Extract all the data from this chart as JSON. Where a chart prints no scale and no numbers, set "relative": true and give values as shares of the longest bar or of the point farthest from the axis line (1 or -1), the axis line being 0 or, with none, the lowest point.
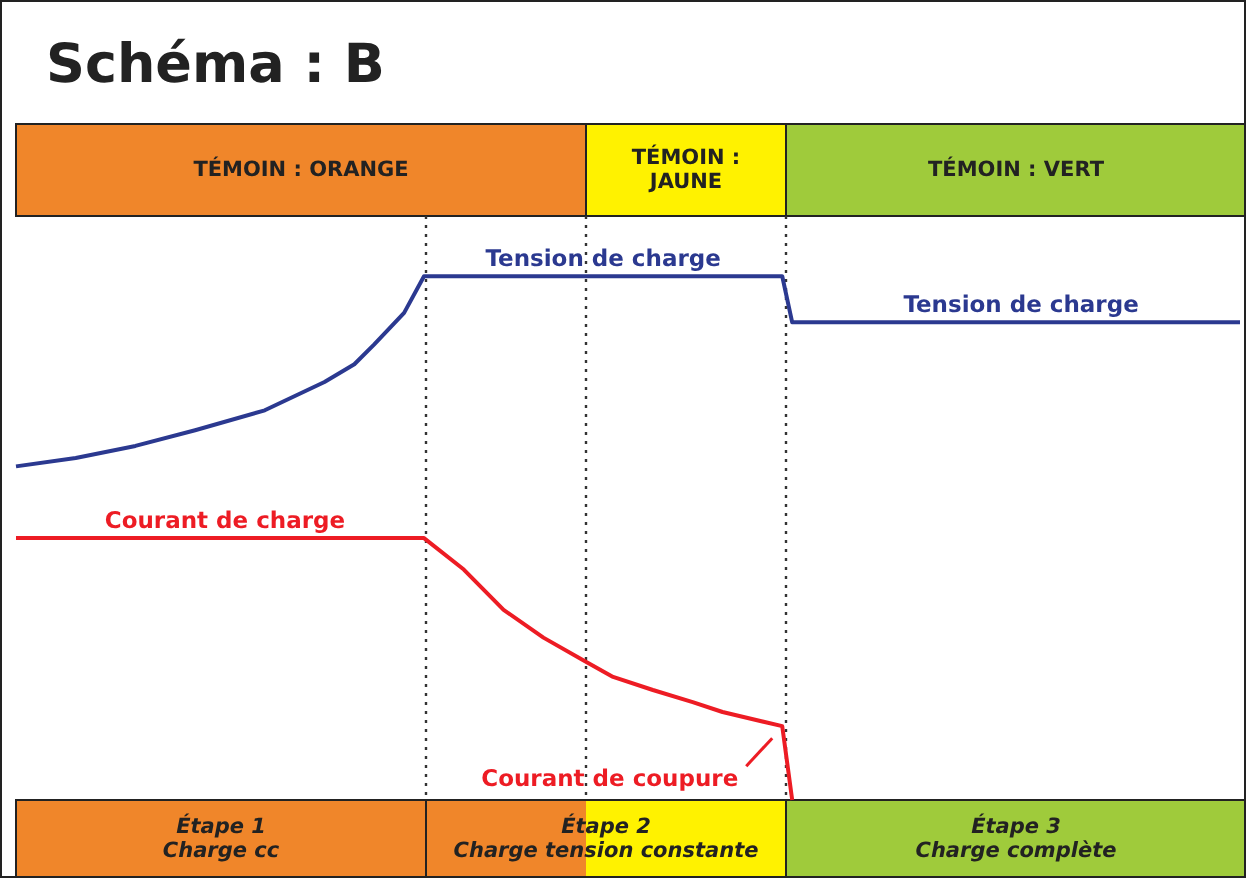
{
  "chart_data": {
    "type": "line",
    "title": "Schéma : B",
    "relative": true,
    "grid": false,
    "legend": false,
    "marker": "none",
    "line_style": "solid",
    "categories": [
      null,
      null,
      null,
      null,
      null,
      null,
      null,
      null,
      null,
      null,
      null,
      null,
      null,
      null,
      null,
      null,
      null,
      null,
      null,
      null,
      null,
      null,
      null,
      null,
      null,
      null,
      null,
      null,
      null,
      null,
      null,
      null,
      null,
      null,
      null,
      null,
      null,
      null,
      null,
      null,
      null,
      null,
      null,
      null,
      null,
      null,
      null,
      null,
      null,
      null,
      null,
      null,
      null,
      null,
      null,
      null,
      null,
      null,
      null,
      null,
      null,
      null,
      null,
      null,
      null,
      null,
      null,
      null,
      null,
      null,
      null,
      null,
      null,
      null,
      null,
      null,
      null,
      null,
      null,
      null,
      null,
      null,
      null,
      null,
      null,
      null,
      null,
      null,
      null,
      null,
      null,
      null,
      null,
      null,
      null,
      null,
      null,
      null,
      null,
      null,
      null,
      null,
      null,
      null,
      null,
      null,
      null,
      null,
      null,
      null,
      null,
      null,
      null,
      null,
      null,
      null,
      null,
      null,
      null,
      null,
      null,
      null,
      null,
      null
    ],
    "series": [
      {
        "name": "Tension de charge",
        "color": "#2b3990",
        "values": [
          0.637,
          null,
          null,
          null,
          null,
          null,
          0.653,
          null,
          null,
          null,
          null,
          null,
          0.676,
          null,
          null,
          null,
          null,
          null,
          0.706,
          null,
          null,
          null,
          null,
          null,
          null,
          0.744,
          null,
          null,
          null,
          null,
          null,
          0.798,
          null,
          null,
          0.832,
          null,
          0.87,
          null,
          null,
          0.93,
          null,
          1,
          null,
          null,
          null,
          null,
          null,
          null,
          null,
          null,
          null,
          null,
          null,
          null,
          null,
          null,
          null,
          null,
          null,
          null,
          null,
          null,
          null,
          null,
          null,
          null,
          null,
          null,
          null,
          null,
          null,
          null,
          null,
          null,
          null,
          null,
          null,
          1,
          0.912,
          null,
          null,
          null,
          null,
          null,
          null,
          null,
          null,
          null,
          null,
          null,
          null,
          null,
          null,
          null,
          null,
          null,
          null,
          null,
          null,
          null,
          null,
          null,
          null,
          null,
          null,
          null,
          null,
          null,
          null,
          null,
          null,
          null,
          null,
          null,
          null,
          null,
          null,
          null,
          null,
          null,
          null,
          null,
          null,
          0.912
        ]
      },
      {
        "name": "Courant de charge",
        "color": "#ed1c24",
        "values": [
          0.5,
          null,
          null,
          null,
          null,
          null,
          null,
          null,
          null,
          null,
          null,
          null,
          null,
          null,
          null,
          null,
          null,
          null,
          null,
          null,
          null,
          null,
          null,
          null,
          null,
          null,
          null,
          null,
          null,
          null,
          null,
          null,
          null,
          null,
          null,
          null,
          null,
          null,
          null,
          null,
          null,
          0.5,
          null,
          null,
          null,
          0.44,
          null,
          null,
          null,
          0.363,
          null,
          null,
          null,
          0.31,
          null,
          null,
          null,
          0.267,
          null,
          null,
          0.235,
          null,
          null,
          null,
          0.21,
          null,
          null,
          null,
          0.187,
          null,
          null,
          0.168,
          null,
          null,
          null,
          null,
          null,
          0.141,
          0,
          null,
          null,
          null,
          null,
          null,
          null,
          null,
          null,
          null,
          null,
          null,
          null,
          null,
          null,
          null,
          null,
          null,
          null,
          null,
          null,
          null,
          null,
          null,
          null,
          null,
          null,
          null,
          null,
          null,
          null,
          null,
          null,
          null,
          null,
          null,
          null,
          null,
          null,
          null,
          null,
          null,
          null,
          null,
          null,
          null
        ]
      }
    ],
    "annotations": [
      "TÉMOIN : ORANGE",
      "TÉMOIN :\nJAUNE",
      "TÉMOIN : VERT",
      "Étape 1\nCharge cc",
      "Étape 2\nCharge tension constante",
      "Étape 3\nCharge complète",
      {
        "text": "Tension de charge",
        "y": 0.912
      },
      "Courant de coupure"
    ]
  }
}
